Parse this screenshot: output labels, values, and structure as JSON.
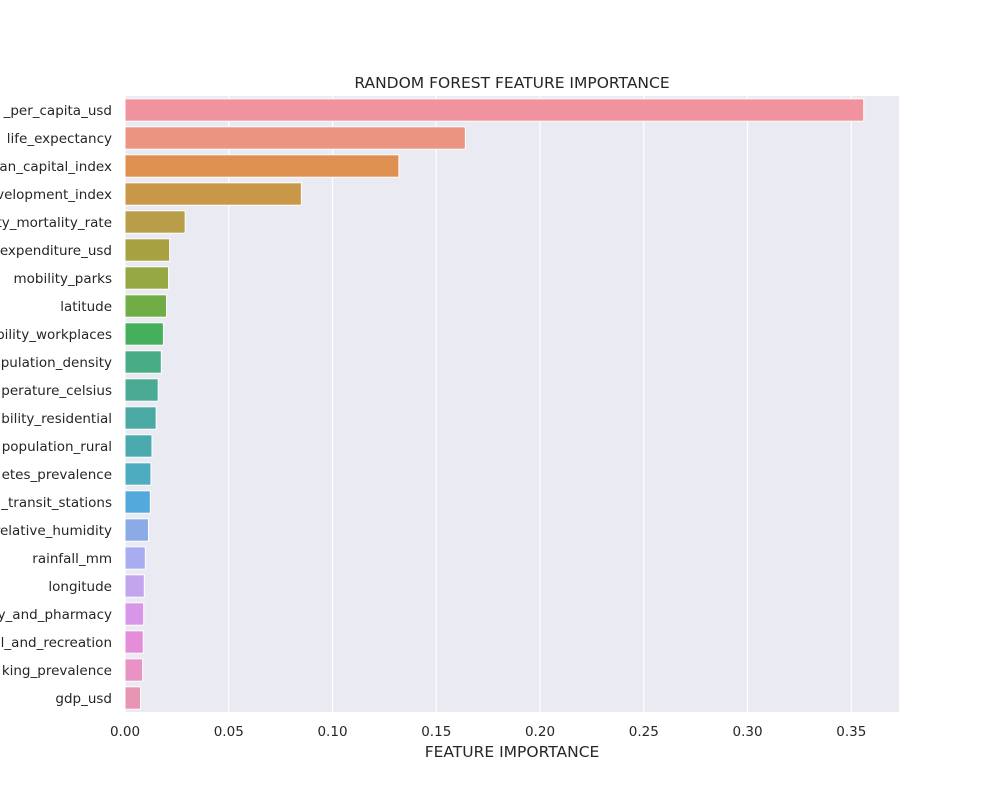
{
  "chart_data": {
    "type": "bar",
    "orientation": "horizontal",
    "title": "RANDOM FOREST FEATURE IMPORTANCE",
    "xlabel": "FEATURE IMPORTANCE",
    "ylabel": "",
    "xlim": [
      0,
      0.373
    ],
    "xticks": [
      0.0,
      0.05,
      0.1,
      0.15,
      0.2,
      0.25,
      0.3,
      0.35
    ],
    "xtick_labels": [
      "0.00",
      "0.05",
      "0.10",
      "0.15",
      "0.20",
      "0.25",
      "0.30",
      "0.35"
    ],
    "grid": true,
    "background": "#eaeaf2",
    "categories": [
      "_per_capita_usd",
      "life_expectancy",
      "an_capital_index",
      "velopment_index",
      "ty_mortality_rate",
      "expenditure_usd",
      "mobility_parks",
      "latitude",
      "bility_workplaces",
      "pulation_density",
      "perature_celsius",
      "bility_residential",
      "population_rural",
      "etes_prevalence",
      "_transit_stations",
      "relative_humidity",
      "rainfall_mm",
      "longitude",
      "y_and_pharmacy",
      "l_and_recreation",
      "king_prevalence",
      "gdp_usd"
    ],
    "values": [
      0.356,
      0.164,
      0.132,
      0.085,
      0.029,
      0.0215,
      0.021,
      0.02,
      0.0185,
      0.0175,
      0.016,
      0.015,
      0.013,
      0.0125,
      0.0122,
      0.0113,
      0.0098,
      0.0093,
      0.009,
      0.0088,
      0.0085,
      0.0075
    ],
    "colors": [
      "#f0939f",
      "#ea9481",
      "#dd9050",
      "#c99747",
      "#b89e48",
      "#a7a142",
      "#95a743",
      "#70ad47",
      "#45b05c",
      "#48ad85",
      "#4aaa94",
      "#4aa9a2",
      "#4baaae",
      "#4eacc0",
      "#51aadb",
      "#8aabe7",
      "#a7adf0",
      "#c3a4ef",
      "#d796e8",
      "#e58dd9",
      "#e992c5",
      "#e895b3"
    ]
  }
}
